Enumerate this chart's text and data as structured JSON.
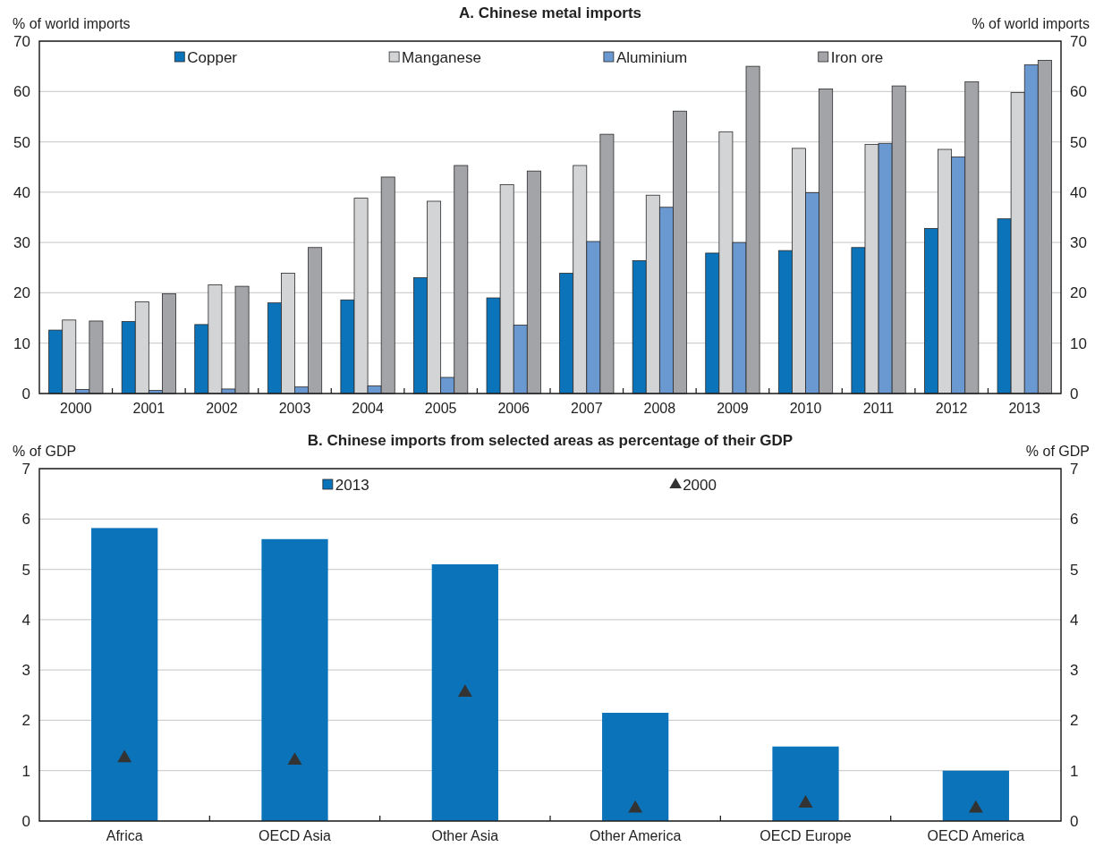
{
  "chart_data": [
    {
      "type": "bar",
      "title": "A. Chinese metal imports",
      "ylabel": "% of world imports",
      "y2label": "% of world imports",
      "categories": [
        "2000",
        "2001",
        "2002",
        "2003",
        "2004",
        "2005",
        "2006",
        "2007",
        "2008",
        "2009",
        "2010",
        "2011",
        "2012",
        "2013"
      ],
      "series": [
        {
          "name": "Copper",
          "color": "#0a73b9",
          "values": [
            12.6,
            14.3,
            13.7,
            18,
            18.6,
            23,
            19,
            23.9,
            26.4,
            27.9,
            28.4,
            29,
            32.8,
            34.7
          ]
        },
        {
          "name": "Manganese",
          "color": "#d3d4d6",
          "values": [
            14.6,
            18.2,
            21.6,
            23.9,
            38.8,
            38.2,
            41.5,
            45.3,
            39.4,
            52,
            48.7,
            49.5,
            48.5,
            59.8
          ]
        },
        {
          "name": "Aluminium",
          "color": "#6a98d0",
          "values": [
            0.8,
            0.6,
            0.9,
            1.3,
            1.5,
            3.2,
            13.6,
            30.2,
            37,
            30,
            39.9,
            49.7,
            47,
            65.3
          ]
        },
        {
          "name": "Iron ore",
          "color": "#a3a4a8",
          "values": [
            14.4,
            19.8,
            21.3,
            29,
            43,
            45.3,
            44.2,
            51.5,
            56.1,
            65,
            60.5,
            61.1,
            61.9,
            66.2
          ]
        }
      ],
      "ylim": [
        0,
        70
      ],
      "yticks": [
        0,
        10,
        20,
        30,
        40,
        50,
        60,
        70
      ],
      "y2lim": [
        0,
        70
      ],
      "y2ticks": [
        0,
        10,
        20,
        30,
        40,
        50,
        60,
        70
      ],
      "grid": "y",
      "legend": "top"
    },
    {
      "type": "bar",
      "title": "B. Chinese imports from selected areas as percentage of their GDP",
      "ylabel": "% of GDP",
      "y2label": "% of GDP",
      "categories": [
        "Africa",
        "OECD Asia",
        "Other Asia",
        "Other America",
        "OECD Europe",
        "OECD America"
      ],
      "series": [
        {
          "name": "2013",
          "color": "#0a73b9",
          "values": [
            5.82,
            5.6,
            5.1,
            2.15,
            1.48,
            1.0
          ]
        },
        {
          "name": "2000",
          "type": "scatter",
          "marker": "triangle",
          "color": "#333333",
          "values": [
            1.25,
            1.2,
            2.55,
            0.25,
            0.35,
            0.25
          ]
        }
      ],
      "ylim": [
        0,
        7
      ],
      "yticks": [
        0,
        1,
        2,
        3,
        4,
        5,
        6,
        7
      ],
      "y2lim": [
        0,
        7
      ],
      "y2ticks": [
        0,
        1,
        2,
        3,
        4,
        5,
        6,
        7
      ],
      "grid": "y",
      "legend": "top"
    }
  ]
}
